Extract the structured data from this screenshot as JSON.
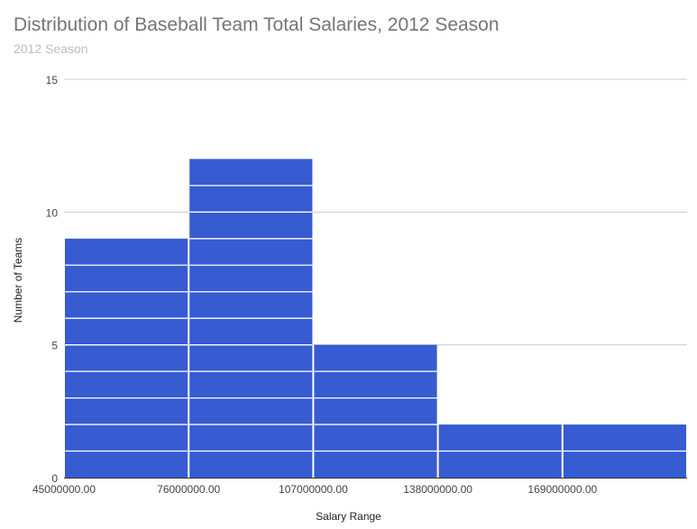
{
  "chart_data": {
    "type": "bar",
    "subtype": "histogram",
    "title": "Distribution of Baseball Team Total Salaries, 2012 Season",
    "subtitle": "2012 Season",
    "xlabel": "Salary Range",
    "ylabel": "Number of Teams",
    "bin_edges": [
      45000000,
      76000000,
      107000000,
      138000000,
      169000000,
      200000000
    ],
    "x_tick_labels": [
      "45000000.00",
      "76000000.00",
      "107000000.00",
      "138000000.00",
      "169000000.00"
    ],
    "values": [
      9,
      12,
      5,
      2,
      2
    ],
    "ylim": [
      0,
      15
    ],
    "y_ticks": [
      0,
      5,
      10,
      15
    ],
    "grid": true,
    "legend": "none",
    "bar_color": "#375bd0"
  }
}
